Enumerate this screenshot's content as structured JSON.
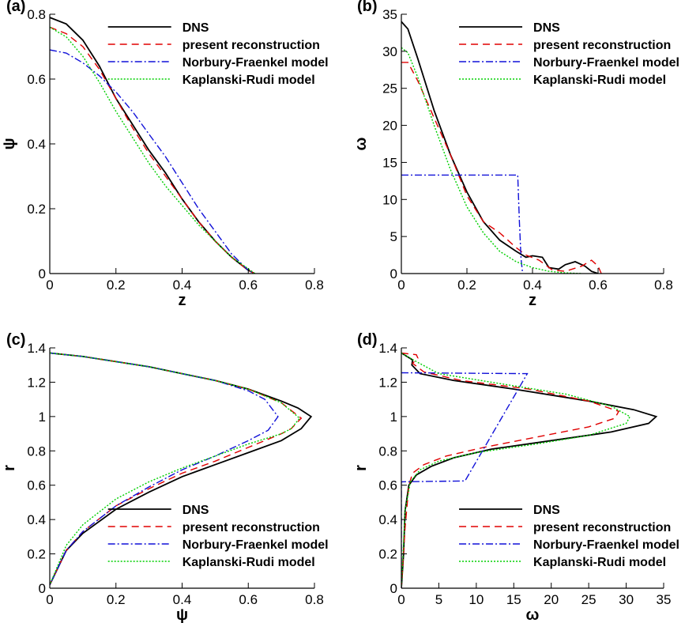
{
  "figure": {
    "panels": [
      "a",
      "b",
      "c",
      "d"
    ]
  },
  "colors": {
    "DNS": "#000000",
    "present reconstruction": "#e00000",
    "Norbury-Fraenkel model": "#1010d8",
    "Kaplanski-Rudi model": "#00d000"
  },
  "chart_data": [
    {
      "panel_label": "(a)",
      "type": "line",
      "xlabel": "z",
      "ylabel": "ψ",
      "xlim": [
        0,
        0.8
      ],
      "ylim": [
        0,
        0.8
      ],
      "xticks": [
        "0",
        "0.2",
        "0.4",
        "0.6",
        "0.8"
      ],
      "yticks": [
        "0",
        "0.2",
        "0.4",
        "0.6",
        "0.8"
      ],
      "legend_position": "top-right",
      "series": [
        {
          "name": "DNS",
          "x": [
            0,
            0.05,
            0.1,
            0.15,
            0.2,
            0.25,
            0.3,
            0.35,
            0.4,
            0.45,
            0.5,
            0.55,
            0.6,
            0.62
          ],
          "y": [
            0.79,
            0.77,
            0.72,
            0.64,
            0.54,
            0.46,
            0.38,
            0.31,
            0.23,
            0.16,
            0.1,
            0.05,
            0.01,
            0
          ]
        },
        {
          "name": "present reconstruction",
          "x": [
            0,
            0.05,
            0.1,
            0.15,
            0.2,
            0.25,
            0.3,
            0.35,
            0.4,
            0.45,
            0.5,
            0.55,
            0.6,
            0.62
          ],
          "y": [
            0.76,
            0.74,
            0.7,
            0.63,
            0.54,
            0.45,
            0.37,
            0.3,
            0.23,
            0.16,
            0.1,
            0.05,
            0.01,
            0
          ]
        },
        {
          "name": "Norbury-Fraenkel model",
          "x": [
            0,
            0.05,
            0.1,
            0.15,
            0.2,
            0.25,
            0.3,
            0.35,
            0.4,
            0.45,
            0.5,
            0.55,
            0.6,
            0.62
          ],
          "y": [
            0.69,
            0.68,
            0.65,
            0.61,
            0.56,
            0.5,
            0.43,
            0.36,
            0.28,
            0.2,
            0.13,
            0.06,
            0.01,
            0
          ]
        },
        {
          "name": "Kaplanski-Rudi model",
          "x": [
            0,
            0.05,
            0.1,
            0.15,
            0.2,
            0.25,
            0.3,
            0.35,
            0.4,
            0.45,
            0.5,
            0.55,
            0.6,
            0.62
          ],
          "y": [
            0.76,
            0.73,
            0.67,
            0.59,
            0.5,
            0.42,
            0.34,
            0.27,
            0.21,
            0.15,
            0.1,
            0.05,
            0.015,
            0
          ]
        }
      ]
    },
    {
      "panel_label": "(b)",
      "type": "line",
      "xlabel": "z",
      "ylabel": "ω",
      "xlim": [
        0,
        0.8
      ],
      "ylim": [
        0,
        35
      ],
      "xticks": [
        "0",
        "0.2",
        "0.4",
        "0.6",
        "0.8"
      ],
      "yticks": [
        "0",
        "5",
        "10",
        "15",
        "20",
        "25",
        "30",
        "35"
      ],
      "legend_position": "top-right",
      "series": [
        {
          "name": "DNS",
          "x": [
            0,
            0.02,
            0.05,
            0.1,
            0.15,
            0.2,
            0.25,
            0.3,
            0.35,
            0.38,
            0.4,
            0.43,
            0.45,
            0.48,
            0.5,
            0.53,
            0.56,
            0.58,
            0.6
          ],
          "y": [
            34,
            33,
            29,
            22,
            16,
            11,
            7,
            4.5,
            3,
            2.2,
            2.4,
            2.2,
            0.8,
            0.6,
            1.2,
            1.6,
            1,
            0.3,
            0
          ]
        },
        {
          "name": "present reconstruction",
          "x": [
            0,
            0.02,
            0.05,
            0.1,
            0.15,
            0.2,
            0.25,
            0.3,
            0.35,
            0.38,
            0.42,
            0.46,
            0.5,
            0.55,
            0.58,
            0.6,
            0.61
          ],
          "y": [
            28.5,
            28.5,
            26,
            21,
            16,
            10.5,
            7,
            5.5,
            3.5,
            2.5,
            1.8,
            0.5,
            0.3,
            1,
            1.8,
            1,
            0
          ]
        },
        {
          "name": "Norbury-Fraenkel model",
          "x": [
            0,
            0.355,
            0.355,
            0.36,
            0.365,
            0.37
          ],
          "y": [
            13.3,
            13.3,
            13.3,
            7,
            2,
            0
          ]
        },
        {
          "name": "Kaplanski-Rudi model",
          "x": [
            0,
            0.02,
            0.05,
            0.1,
            0.15,
            0.2,
            0.25,
            0.3,
            0.35,
            0.4,
            0.45,
            0.5,
            0.55
          ],
          "y": [
            30.5,
            29.8,
            26.5,
            20,
            14,
            9,
            5.5,
            3,
            1.6,
            0.8,
            0.3,
            0.1,
            0
          ]
        }
      ]
    },
    {
      "panel_label": "(c)",
      "type": "line",
      "xlabel": "ψ",
      "ylabel": "r",
      "xlim": [
        0,
        0.8
      ],
      "ylim": [
        0,
        1.4
      ],
      "xticks": [
        "0",
        "0.2",
        "0.4",
        "0.6",
        "0.8"
      ],
      "yticks": [
        "0",
        "0.2",
        "0.4",
        "0.6",
        "0.8",
        "1",
        "1.2",
        "1.4"
      ],
      "legend_position": "bottom-right",
      "series": [
        {
          "name": "DNS",
          "x": [
            0,
            0.1,
            0.2,
            0.3,
            0.4,
            0.5,
            0.6,
            0.7,
            0.75,
            0.79,
            0.76,
            0.7,
            0.6,
            0.5,
            0.4,
            0.3,
            0.2,
            0.1,
            0.05,
            0
          ],
          "y": [
            1.37,
            1.35,
            1.32,
            1.29,
            1.25,
            1.21,
            1.16,
            1.09,
            1.05,
            1.0,
            0.93,
            0.86,
            0.79,
            0.72,
            0.65,
            0.56,
            0.46,
            0.32,
            0.22,
            0.02
          ]
        },
        {
          "name": "present reconstruction",
          "x": [
            0,
            0.1,
            0.2,
            0.3,
            0.4,
            0.5,
            0.6,
            0.7,
            0.76,
            0.73,
            0.7,
            0.6,
            0.5,
            0.4,
            0.3,
            0.2,
            0.1,
            0.05,
            0
          ],
          "y": [
            1.37,
            1.35,
            1.32,
            1.29,
            1.25,
            1.21,
            1.16,
            1.08,
            0.99,
            0.93,
            0.9,
            0.82,
            0.74,
            0.67,
            0.58,
            0.48,
            0.33,
            0.22,
            0.02
          ]
        },
        {
          "name": "Norbury-Fraenkel model",
          "x": [
            0,
            0.1,
            0.2,
            0.3,
            0.4,
            0.5,
            0.6,
            0.65,
            0.69,
            0.66,
            0.6,
            0.5,
            0.4,
            0.3,
            0.2,
            0.1,
            0.05,
            0
          ],
          "y": [
            1.37,
            1.35,
            1.32,
            1.29,
            1.25,
            1.21,
            1.15,
            1.1,
            1.0,
            0.92,
            0.86,
            0.77,
            0.69,
            0.59,
            0.48,
            0.33,
            0.22,
            0.02
          ]
        },
        {
          "name": "Kaplanski-Rudi model",
          "x": [
            0,
            0.1,
            0.2,
            0.3,
            0.4,
            0.5,
            0.6,
            0.7,
            0.755,
            0.73,
            0.7,
            0.6,
            0.5,
            0.4,
            0.3,
            0.2,
            0.1,
            0.05,
            0
          ],
          "y": [
            1.37,
            1.35,
            1.32,
            1.29,
            1.25,
            1.21,
            1.16,
            1.08,
            0.99,
            0.93,
            0.9,
            0.84,
            0.77,
            0.7,
            0.62,
            0.52,
            0.37,
            0.25,
            0.02
          ]
        }
      ]
    },
    {
      "panel_label": "(d)",
      "type": "line",
      "xlabel": "ω",
      "ylabel": "r",
      "xlim": [
        0,
        35
      ],
      "ylim": [
        0,
        1.4
      ],
      "xticks": [
        "0",
        "5",
        "10",
        "15",
        "20",
        "25",
        "30",
        "35"
      ],
      "yticks": [
        "0",
        "0.2",
        "0.4",
        "0.6",
        "0.8",
        "1",
        "1.2",
        "1.4"
      ],
      "legend_position": "bottom-right",
      "series": [
        {
          "name": "DNS",
          "x": [
            0,
            1.5,
            1.4,
            2.5,
            7,
            15,
            25,
            31,
            34,
            33,
            28,
            20,
            12,
            7,
            4,
            2,
            1,
            0.5,
            0.3,
            0
          ],
          "y": [
            1.37,
            1.33,
            1.3,
            1.25,
            1.21,
            1.16,
            1.09,
            1.04,
            1.0,
            0.96,
            0.91,
            0.86,
            0.81,
            0.76,
            0.71,
            0.66,
            0.6,
            0.45,
            0.2,
            0
          ]
        },
        {
          "name": "present reconstruction",
          "x": [
            0,
            2,
            2.2,
            1.5,
            3,
            8,
            17,
            25,
            29,
            28.5,
            25,
            18,
            11,
            6,
            3,
            1.5,
            1.0,
            0.5,
            0
          ],
          "y": [
            1.37,
            1.36,
            1.34,
            1.31,
            1.26,
            1.21,
            1.16,
            1.09,
            1.03,
            0.99,
            0.94,
            0.88,
            0.82,
            0.77,
            0.72,
            0.67,
            0.6,
            0.35,
            0
          ]
        },
        {
          "name": "Norbury-Fraenkel model",
          "x": [
            0,
            16.8,
            8.5,
            0,
            0
          ],
          "y": [
            1.255,
            1.25,
            0.625,
            0.62,
            0
          ]
        },
        {
          "name": "Kaplanski-Rudi model",
          "x": [
            0,
            2,
            5,
            12,
            22,
            28,
            30.5,
            30,
            25,
            18,
            10,
            5,
            2.5,
            1.2,
            0.5,
            0
          ],
          "y": [
            1.37,
            1.32,
            1.25,
            1.2,
            1.13,
            1.06,
            1.0,
            0.96,
            0.89,
            0.84,
            0.79,
            0.74,
            0.69,
            0.62,
            0.45,
            0
          ]
        }
      ]
    }
  ]
}
